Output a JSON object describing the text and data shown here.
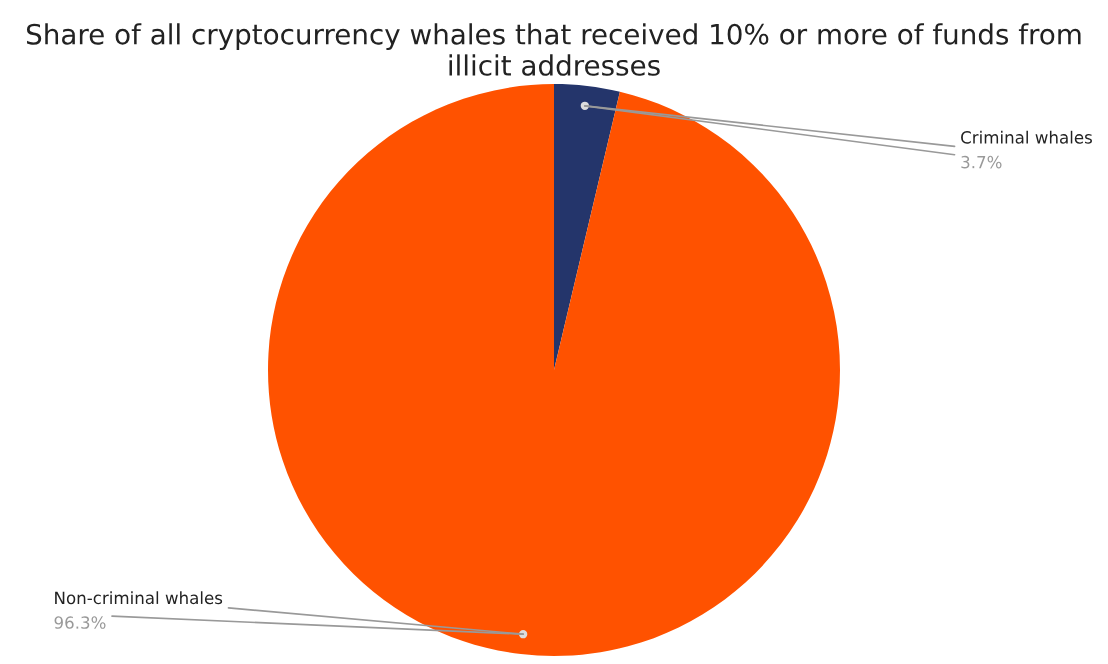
{
  "chart_data": {
    "type": "pie",
    "title": "Share of all cryptocurrency whales that received 10% or more of funds from illicit addresses",
    "categories": [
      "Criminal whales",
      "Non-criminal whales"
    ],
    "values": [
      3.7,
      96.3
    ],
    "colors": [
      "#24356b",
      "#ff5200"
    ],
    "value_labels": [
      "3.7%",
      "96.3%"
    ]
  }
}
